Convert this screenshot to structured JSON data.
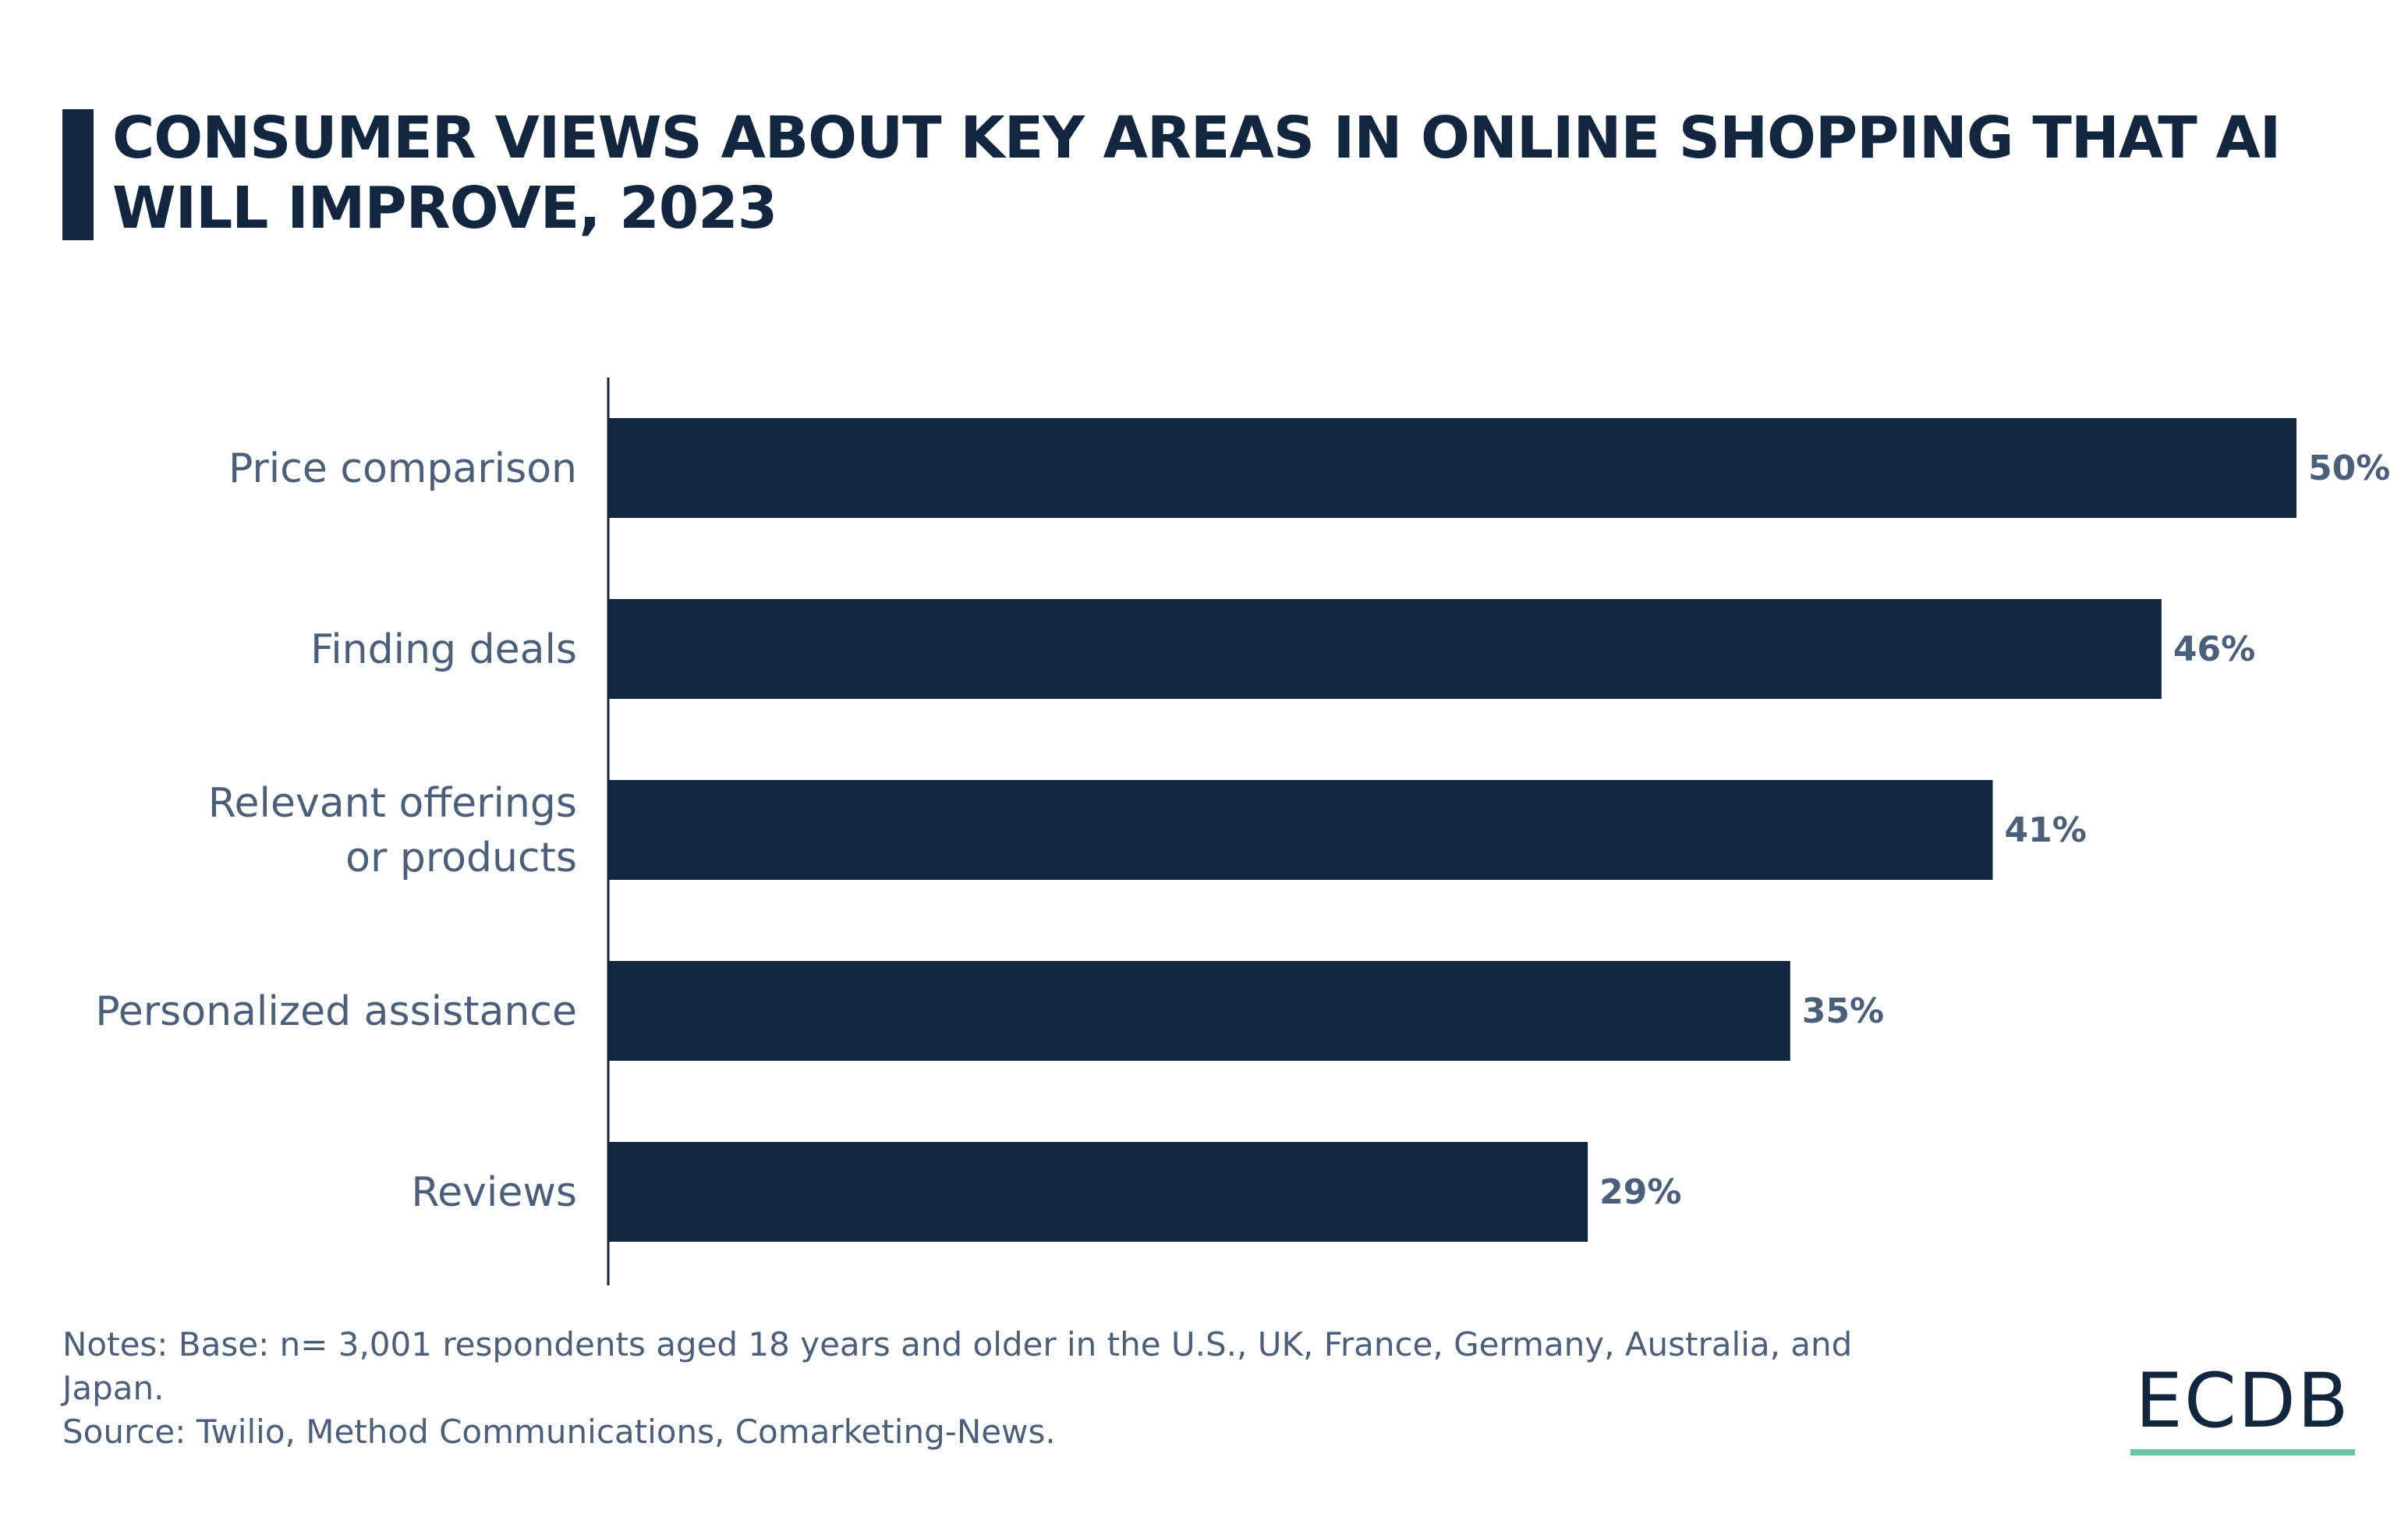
{
  "title": "CONSUMER VIEWS ABOUT KEY AREAS IN ONLINE SHOPPING THAT AI WILL IMPROVE, 2023",
  "chart_data": {
    "type": "bar",
    "orientation": "horizontal",
    "title": "CONSUMER VIEWS ABOUT KEY AREAS IN ONLINE SHOPPING THAT AI WILL IMPROVE, 2023",
    "categories": [
      [
        "Price comparison"
      ],
      [
        "Finding deals"
      ],
      [
        "Relevant offerings",
        "or products"
      ],
      [
        "Personalized assistance"
      ],
      [
        "Reviews"
      ]
    ],
    "values": [
      50,
      46,
      41,
      35,
      29
    ],
    "value_labels": [
      "50%",
      "46%",
      "41%",
      "35%",
      "29%"
    ],
    "unit": "%",
    "xlim": [
      0,
      50
    ],
    "grid": false,
    "bar_color": "#13263f",
    "label_color": "#4b5e7a"
  },
  "notes": {
    "line1": "Notes: Base: n= 3,001 respondents aged 18 years and older in the U.S., UK, France, Germany, Australia, and Japan.",
    "source": "Source: Twilio, Method Communications, Comarketing-News."
  },
  "logo": {
    "text": "ECDB",
    "accent_color": "#6cc3ad"
  }
}
